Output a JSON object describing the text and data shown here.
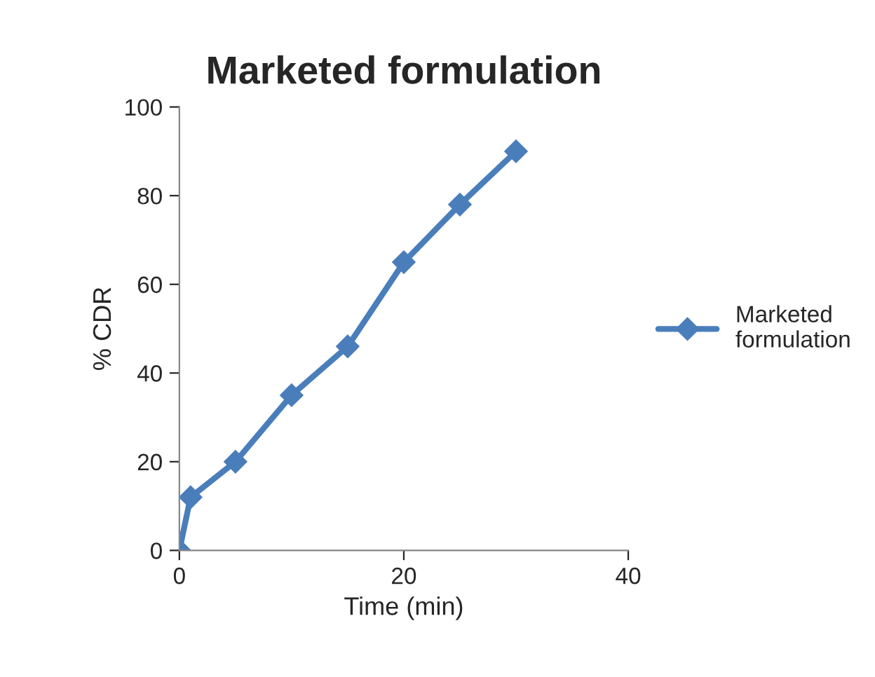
{
  "chart_data": {
    "type": "line",
    "title": "Marketed formulation",
    "xlabel": "Time (min)",
    "ylabel": "% CDR",
    "x": [
      0,
      1,
      5,
      10,
      15,
      20,
      25,
      30
    ],
    "series": [
      {
        "name": "Marketed\nformulation",
        "color": "#4a7ebb",
        "values": [
          0,
          12,
          20,
          35,
          46,
          65,
          78,
          90
        ]
      }
    ],
    "xlim": [
      0,
      40
    ],
    "xticks": [
      0,
      20,
      40
    ],
    "ylim": [
      0,
      100
    ],
    "yticks": [
      0,
      20,
      40,
      60,
      80,
      100
    ],
    "grid": false,
    "legend": "right",
    "marker": "diamond",
    "line_style": "solid"
  }
}
